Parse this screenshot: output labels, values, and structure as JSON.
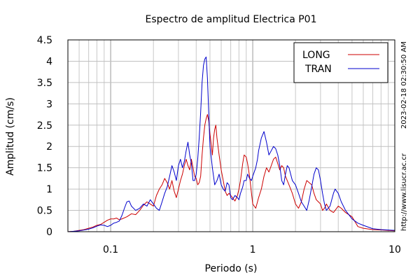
{
  "chart_data": {
    "type": "line",
    "title": "Espectro de amplitud Electrica P01",
    "xlabel": "Periodo (s)",
    "ylabel": "Amplitud (cm/s)",
    "x_scale": "log",
    "xlim": [
      0.05,
      10
    ],
    "ylim": [
      0,
      4.5
    ],
    "x_ticks": [
      {
        "value": 0.1,
        "label": "0.1"
      },
      {
        "value": 1,
        "label": "1"
      },
      {
        "value": 10,
        "label": "10"
      }
    ],
    "y_ticks": [
      {
        "value": 0,
        "label": "0"
      },
      {
        "value": 0.5,
        "label": "0.5"
      },
      {
        "value": 1,
        "label": "1"
      },
      {
        "value": 1.5,
        "label": "1.5"
      },
      {
        "value": 2,
        "label": "2"
      },
      {
        "value": 2.5,
        "label": "2.5"
      },
      {
        "value": 3,
        "label": "3"
      },
      {
        "value": 3.5,
        "label": "3.5"
      },
      {
        "value": 4,
        "label": "4"
      },
      {
        "value": 4.5,
        "label": "4.5"
      }
    ],
    "grid": true,
    "legend_position": "top-right",
    "series": [
      {
        "name": "LONG",
        "color": "#cc0000",
        "points": [
          [
            0.05,
            0.0
          ],
          [
            0.055,
            0.01
          ],
          [
            0.06,
            0.03
          ],
          [
            0.065,
            0.05
          ],
          [
            0.07,
            0.08
          ],
          [
            0.075,
            0.11
          ],
          [
            0.08,
            0.15
          ],
          [
            0.085,
            0.17
          ],
          [
            0.09,
            0.22
          ],
          [
            0.095,
            0.27
          ],
          [
            0.1,
            0.3
          ],
          [
            0.105,
            0.3
          ],
          [
            0.11,
            0.32
          ],
          [
            0.115,
            0.28
          ],
          [
            0.12,
            0.3
          ],
          [
            0.13,
            0.35
          ],
          [
            0.14,
            0.42
          ],
          [
            0.15,
            0.4
          ],
          [
            0.16,
            0.5
          ],
          [
            0.17,
            0.62
          ],
          [
            0.18,
            0.7
          ],
          [
            0.19,
            0.65
          ],
          [
            0.2,
            0.6
          ],
          [
            0.21,
            0.85
          ],
          [
            0.22,
            1.0
          ],
          [
            0.23,
            1.1
          ],
          [
            0.24,
            1.25
          ],
          [
            0.25,
            1.15
          ],
          [
            0.26,
            1.0
          ],
          [
            0.27,
            1.2
          ],
          [
            0.28,
            0.95
          ],
          [
            0.29,
            0.8
          ],
          [
            0.3,
            1.0
          ],
          [
            0.31,
            1.2
          ],
          [
            0.32,
            1.35
          ],
          [
            0.33,
            1.55
          ],
          [
            0.34,
            1.7
          ],
          [
            0.35,
            1.55
          ],
          [
            0.36,
            1.45
          ],
          [
            0.37,
            1.7
          ],
          [
            0.38,
            1.5
          ],
          [
            0.39,
            1.3
          ],
          [
            0.4,
            1.25
          ],
          [
            0.41,
            1.1
          ],
          [
            0.42,
            1.15
          ],
          [
            0.43,
            1.3
          ],
          [
            0.44,
            1.8
          ],
          [
            0.45,
            2.2
          ],
          [
            0.46,
            2.5
          ],
          [
            0.47,
            2.65
          ],
          [
            0.48,
            2.75
          ],
          [
            0.49,
            2.6
          ],
          [
            0.5,
            2.3
          ],
          [
            0.52,
            1.8
          ],
          [
            0.53,
            2.2
          ],
          [
            0.54,
            2.4
          ],
          [
            0.55,
            2.5
          ],
          [
            0.56,
            2.2
          ],
          [
            0.58,
            1.8
          ],
          [
            0.6,
            1.45
          ],
          [
            0.62,
            1.2
          ],
          [
            0.64,
            0.95
          ],
          [
            0.66,
            0.85
          ],
          [
            0.68,
            0.9
          ],
          [
            0.7,
            0.85
          ],
          [
            0.72,
            0.8
          ],
          [
            0.75,
            0.72
          ],
          [
            0.78,
            0.85
          ],
          [
            0.8,
            1.0
          ],
          [
            0.82,
            1.2
          ],
          [
            0.85,
            1.6
          ],
          [
            0.87,
            1.8
          ],
          [
            0.9,
            1.75
          ],
          [
            0.92,
            1.6
          ],
          [
            0.95,
            1.3
          ],
          [
            0.98,
            0.9
          ],
          [
            1.0,
            0.65
          ],
          [
            1.05,
            0.55
          ],
          [
            1.08,
            0.7
          ],
          [
            1.1,
            0.8
          ],
          [
            1.15,
            1.0
          ],
          [
            1.2,
            1.3
          ],
          [
            1.25,
            1.5
          ],
          [
            1.3,
            1.4
          ],
          [
            1.35,
            1.55
          ],
          [
            1.4,
            1.7
          ],
          [
            1.45,
            1.75
          ],
          [
            1.5,
            1.6
          ],
          [
            1.55,
            1.45
          ],
          [
            1.6,
            1.55
          ],
          [
            1.65,
            1.5
          ],
          [
            1.7,
            1.3
          ],
          [
            1.8,
            1.1
          ],
          [
            1.9,
            0.9
          ],
          [
            2.0,
            0.65
          ],
          [
            2.1,
            0.55
          ],
          [
            2.2,
            0.7
          ],
          [
            2.3,
            1.0
          ],
          [
            2.4,
            1.2
          ],
          [
            2.5,
            1.15
          ],
          [
            2.6,
            1.1
          ],
          [
            2.7,
            0.9
          ],
          [
            2.8,
            0.75
          ],
          [
            2.9,
            0.7
          ],
          [
            3.0,
            0.65
          ],
          [
            3.1,
            0.5
          ],
          [
            3.2,
            0.55
          ],
          [
            3.3,
            0.65
          ],
          [
            3.5,
            0.5
          ],
          [
            3.7,
            0.45
          ],
          [
            3.8,
            0.5
          ],
          [
            4.0,
            0.6
          ],
          [
            4.2,
            0.55
          ],
          [
            4.5,
            0.45
          ],
          [
            5.0,
            0.35
          ],
          [
            5.5,
            0.12
          ],
          [
            6.0,
            0.08
          ],
          [
            7.0,
            0.05
          ],
          [
            8.0,
            0.04
          ],
          [
            10.0,
            0.02
          ]
        ]
      },
      {
        "name": "TRAN",
        "color": "#0000cc",
        "points": [
          [
            0.05,
            0.0
          ],
          [
            0.055,
            0.01
          ],
          [
            0.06,
            0.02
          ],
          [
            0.065,
            0.04
          ],
          [
            0.07,
            0.06
          ],
          [
            0.075,
            0.09
          ],
          [
            0.08,
            0.13
          ],
          [
            0.085,
            0.16
          ],
          [
            0.09,
            0.15
          ],
          [
            0.095,
            0.12
          ],
          [
            0.1,
            0.15
          ],
          [
            0.105,
            0.2
          ],
          [
            0.11,
            0.22
          ],
          [
            0.115,
            0.25
          ],
          [
            0.12,
            0.38
          ],
          [
            0.125,
            0.55
          ],
          [
            0.13,
            0.7
          ],
          [
            0.135,
            0.72
          ],
          [
            0.14,
            0.6
          ],
          [
            0.15,
            0.5
          ],
          [
            0.16,
            0.55
          ],
          [
            0.17,
            0.65
          ],
          [
            0.18,
            0.6
          ],
          [
            0.19,
            0.75
          ],
          [
            0.2,
            0.65
          ],
          [
            0.21,
            0.55
          ],
          [
            0.22,
            0.5
          ],
          [
            0.23,
            0.7
          ],
          [
            0.24,
            0.9
          ],
          [
            0.25,
            1.05
          ],
          [
            0.26,
            1.3
          ],
          [
            0.27,
            1.55
          ],
          [
            0.28,
            1.4
          ],
          [
            0.29,
            1.2
          ],
          [
            0.3,
            1.55
          ],
          [
            0.31,
            1.7
          ],
          [
            0.32,
            1.5
          ],
          [
            0.33,
            1.65
          ],
          [
            0.34,
            1.9
          ],
          [
            0.35,
            2.1
          ],
          [
            0.36,
            1.8
          ],
          [
            0.37,
            1.6
          ],
          [
            0.38,
            1.2
          ],
          [
            0.39,
            1.2
          ],
          [
            0.4,
            1.35
          ],
          [
            0.41,
            1.7
          ],
          [
            0.42,
            2.2
          ],
          [
            0.43,
            2.8
          ],
          [
            0.44,
            3.5
          ],
          [
            0.45,
            3.9
          ],
          [
            0.46,
            4.05
          ],
          [
            0.47,
            4.1
          ],
          [
            0.48,
            3.6
          ],
          [
            0.49,
            2.8
          ],
          [
            0.5,
            2.0
          ],
          [
            0.52,
            1.5
          ],
          [
            0.54,
            1.1
          ],
          [
            0.56,
            1.2
          ],
          [
            0.58,
            1.35
          ],
          [
            0.6,
            1.1
          ],
          [
            0.62,
            1.0
          ],
          [
            0.64,
            0.95
          ],
          [
            0.66,
            1.15
          ],
          [
            0.68,
            1.1
          ],
          [
            0.7,
            0.8
          ],
          [
            0.72,
            0.75
          ],
          [
            0.75,
            0.85
          ],
          [
            0.78,
            0.8
          ],
          [
            0.8,
            0.75
          ],
          [
            0.82,
            0.9
          ],
          [
            0.85,
            1.05
          ],
          [
            0.87,
            1.2
          ],
          [
            0.9,
            1.2
          ],
          [
            0.92,
            1.35
          ],
          [
            0.95,
            1.25
          ],
          [
            0.98,
            1.2
          ],
          [
            1.0,
            1.3
          ],
          [
            1.05,
            1.5
          ],
          [
            1.08,
            1.7
          ],
          [
            1.1,
            1.9
          ],
          [
            1.15,
            2.2
          ],
          [
            1.2,
            2.35
          ],
          [
            1.25,
            2.1
          ],
          [
            1.3,
            1.8
          ],
          [
            1.35,
            1.9
          ],
          [
            1.4,
            2.0
          ],
          [
            1.45,
            1.95
          ],
          [
            1.5,
            1.8
          ],
          [
            1.55,
            1.55
          ],
          [
            1.6,
            1.2
          ],
          [
            1.65,
            1.1
          ],
          [
            1.7,
            1.35
          ],
          [
            1.75,
            1.55
          ],
          [
            1.8,
            1.5
          ],
          [
            1.9,
            1.2
          ],
          [
            2.0,
            1.1
          ],
          [
            2.1,
            0.9
          ],
          [
            2.2,
            0.7
          ],
          [
            2.3,
            0.6
          ],
          [
            2.4,
            0.5
          ],
          [
            2.5,
            0.75
          ],
          [
            2.6,
            1.05
          ],
          [
            2.7,
            1.35
          ],
          [
            2.8,
            1.5
          ],
          [
            2.9,
            1.45
          ],
          [
            3.0,
            1.2
          ],
          [
            3.1,
            0.9
          ],
          [
            3.2,
            0.65
          ],
          [
            3.3,
            0.5
          ],
          [
            3.5,
            0.6
          ],
          [
            3.7,
            0.9
          ],
          [
            3.8,
            1.0
          ],
          [
            4.0,
            0.9
          ],
          [
            4.2,
            0.7
          ],
          [
            4.5,
            0.5
          ],
          [
            5.0,
            0.3
          ],
          [
            5.5,
            0.2
          ],
          [
            6.0,
            0.15
          ],
          [
            7.0,
            0.07
          ],
          [
            8.0,
            0.05
          ],
          [
            10.0,
            0.03
          ]
        ]
      }
    ],
    "side_annotations": [
      "2023-02-18 02:30:50 AM",
      "http://www.lisucr.ac.cr"
    ]
  }
}
